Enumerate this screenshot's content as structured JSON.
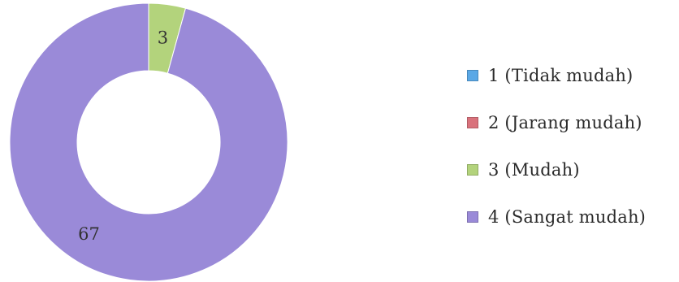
{
  "chart_data": {
    "type": "pie",
    "donut": true,
    "categories": [
      "1 (Tidak mudah)",
      "2 (Jarang mudah)",
      "3 (Mudah)",
      "4 (Sangat mudah)"
    ],
    "values": [
      0,
      0,
      3,
      67
    ],
    "colors": [
      "#5aa8e6",
      "#d9727c",
      "#b3d37c",
      "#9a8ad8"
    ],
    "data_labels": [
      "",
      "",
      "3",
      "67"
    ],
    "legend_position": "right"
  }
}
